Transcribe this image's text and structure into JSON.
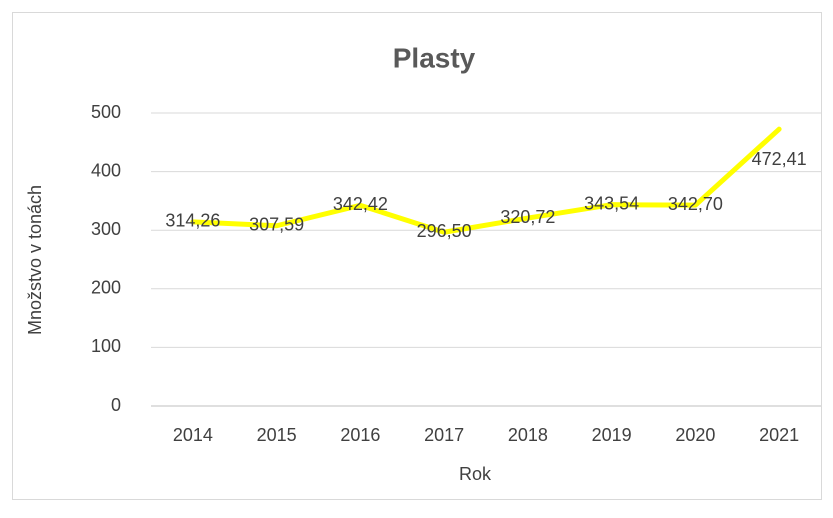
{
  "chart_data": {
    "type": "line",
    "title": "Plasty",
    "x_label": "Rok",
    "y_label": "Množstvo v tonách",
    "categories": [
      "2014",
      "2015",
      "2016",
      "2017",
      "2018",
      "2019",
      "2020",
      "2021"
    ],
    "values": [
      314.26,
      307.59,
      342.42,
      296.5,
      320.72,
      343.54,
      342.7,
      472.41
    ],
    "value_labels": [
      "314,26",
      "307,59",
      "342,42",
      "296,50",
      "320,72",
      "343,54",
      "342,70",
      "472,41"
    ],
    "color": "#ffff00",
    "ylim": [
      0,
      500
    ],
    "yticks": [
      0,
      100,
      200,
      300,
      400,
      500
    ],
    "grid": true
  }
}
